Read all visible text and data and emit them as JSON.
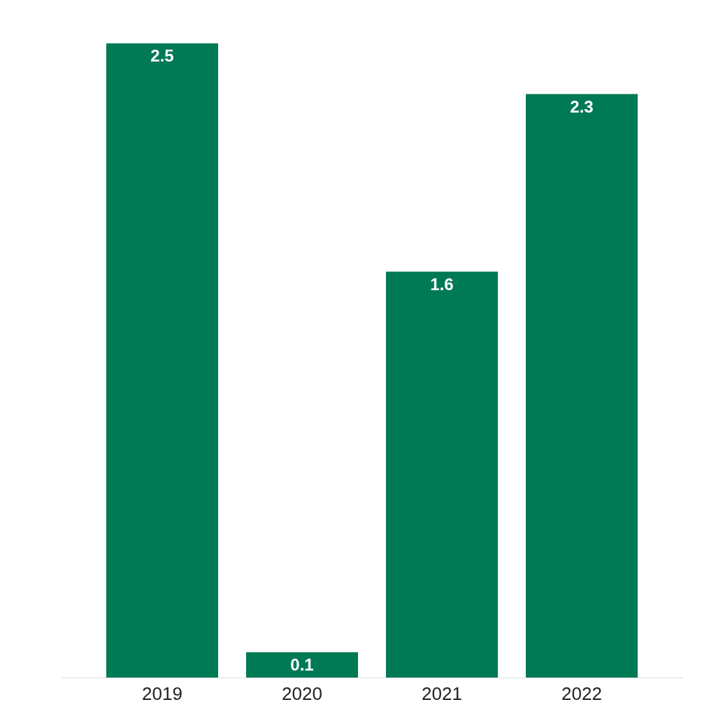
{
  "chart_data": {
    "type": "bar",
    "categories": [
      "2019",
      "2020",
      "2021",
      "2022"
    ],
    "values": [
      2.5,
      0.1,
      1.6,
      2.3
    ],
    "color": "#007a55",
    "data_labels": true
  }
}
